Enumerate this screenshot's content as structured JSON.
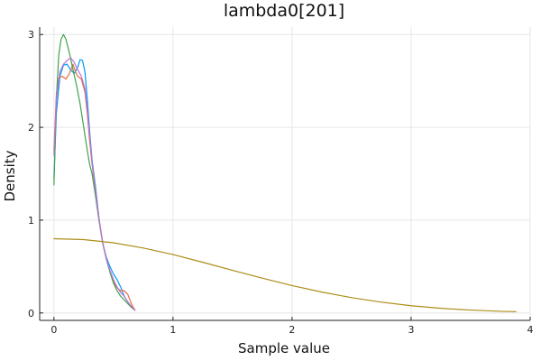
{
  "chart_data": {
    "type": "line",
    "title": "lambda0[201]",
    "xlabel": "Sample value",
    "ylabel": "Density",
    "xlim": [
      -0.12,
      4.0
    ],
    "ylim": [
      -0.08,
      3.08
    ],
    "x_ticks": [
      0,
      1,
      2,
      3,
      4
    ],
    "x_tick_labels": [
      "0",
      "1",
      "2",
      "3",
      "4"
    ],
    "y_ticks": [
      0,
      1,
      2,
      3
    ],
    "y_tick_labels": [
      "0",
      "1",
      "2",
      "3"
    ],
    "grid": true,
    "legend": "none",
    "series": [
      {
        "color": "#009af9",
        "points": [
          [
            0.0,
            1.45
          ],
          [
            0.02,
            2.15
          ],
          [
            0.05,
            2.55
          ],
          [
            0.08,
            2.67
          ],
          [
            0.11,
            2.68
          ],
          [
            0.14,
            2.62
          ],
          [
            0.17,
            2.58
          ],
          [
            0.2,
            2.65
          ],
          [
            0.22,
            2.73
          ],
          [
            0.24,
            2.72
          ],
          [
            0.26,
            2.6
          ],
          [
            0.28,
            2.3
          ],
          [
            0.3,
            1.95
          ],
          [
            0.32,
            1.65
          ],
          [
            0.35,
            1.35
          ],
          [
            0.38,
            1.0
          ],
          [
            0.41,
            0.75
          ],
          [
            0.44,
            0.6
          ],
          [
            0.47,
            0.5
          ],
          [
            0.5,
            0.42
          ],
          [
            0.53,
            0.36
          ],
          [
            0.56,
            0.28
          ],
          [
            0.59,
            0.18
          ],
          [
            0.62,
            0.12
          ],
          [
            0.65,
            0.07
          ],
          [
            0.68,
            0.03
          ]
        ]
      },
      {
        "color": "#e26f46",
        "points": [
          [
            0.0,
            1.75
          ],
          [
            0.02,
            2.35
          ],
          [
            0.04,
            2.53
          ],
          [
            0.07,
            2.55
          ],
          [
            0.1,
            2.52
          ],
          [
            0.13,
            2.58
          ],
          [
            0.16,
            2.68
          ],
          [
            0.18,
            2.6
          ],
          [
            0.2,
            2.55
          ],
          [
            0.23,
            2.52
          ],
          [
            0.26,
            2.38
          ],
          [
            0.28,
            2.15
          ],
          [
            0.3,
            1.85
          ],
          [
            0.32,
            1.6
          ],
          [
            0.35,
            1.3
          ],
          [
            0.38,
            1.0
          ],
          [
            0.41,
            0.75
          ],
          [
            0.44,
            0.58
          ],
          [
            0.47,
            0.45
          ],
          [
            0.5,
            0.33
          ],
          [
            0.53,
            0.27
          ],
          [
            0.56,
            0.24
          ],
          [
            0.59,
            0.24
          ],
          [
            0.62,
            0.2
          ],
          [
            0.65,
            0.1
          ],
          [
            0.68,
            0.03
          ]
        ]
      },
      {
        "color": "#3da44d",
        "points": [
          [
            0.0,
            1.38
          ],
          [
            0.02,
            2.3
          ],
          [
            0.04,
            2.78
          ],
          [
            0.06,
            2.95
          ],
          [
            0.08,
            3.0
          ],
          [
            0.1,
            2.95
          ],
          [
            0.13,
            2.8
          ],
          [
            0.16,
            2.62
          ],
          [
            0.19,
            2.45
          ],
          [
            0.22,
            2.25
          ],
          [
            0.25,
            2.0
          ],
          [
            0.28,
            1.75
          ],
          [
            0.3,
            1.6
          ],
          [
            0.32,
            1.5
          ],
          [
            0.35,
            1.25
          ],
          [
            0.38,
            0.98
          ],
          [
            0.41,
            0.75
          ],
          [
            0.44,
            0.58
          ],
          [
            0.47,
            0.44
          ],
          [
            0.5,
            0.32
          ],
          [
            0.53,
            0.24
          ],
          [
            0.56,
            0.18
          ],
          [
            0.59,
            0.14
          ],
          [
            0.62,
            0.1
          ],
          [
            0.65,
            0.06
          ],
          [
            0.68,
            0.03
          ]
        ]
      },
      {
        "color": "#c271d2",
        "points": [
          [
            0.0,
            1.7
          ],
          [
            0.02,
            2.3
          ],
          [
            0.05,
            2.6
          ],
          [
            0.08,
            2.68
          ],
          [
            0.11,
            2.72
          ],
          [
            0.14,
            2.75
          ],
          [
            0.17,
            2.7
          ],
          [
            0.2,
            2.62
          ],
          [
            0.23,
            2.55
          ],
          [
            0.26,
            2.42
          ],
          [
            0.28,
            2.2
          ],
          [
            0.3,
            1.9
          ],
          [
            0.32,
            1.62
          ],
          [
            0.35,
            1.32
          ],
          [
            0.38,
            1.0
          ],
          [
            0.41,
            0.75
          ],
          [
            0.44,
            0.58
          ],
          [
            0.47,
            0.46
          ],
          [
            0.5,
            0.36
          ],
          [
            0.53,
            0.28
          ],
          [
            0.56,
            0.22
          ],
          [
            0.59,
            0.18
          ],
          [
            0.62,
            0.12
          ],
          [
            0.65,
            0.07
          ],
          [
            0.68,
            0.03
          ]
        ]
      },
      {
        "color": "#ac8d18",
        "points": [
          [
            0.0,
            0.8
          ],
          [
            0.25,
            0.79
          ],
          [
            0.5,
            0.756
          ],
          [
            0.75,
            0.7
          ],
          [
            1.0,
            0.629
          ],
          [
            1.25,
            0.546
          ],
          [
            1.5,
            0.459
          ],
          [
            1.75,
            0.375
          ],
          [
            2.0,
            0.295
          ],
          [
            2.25,
            0.225
          ],
          [
            2.5,
            0.165
          ],
          [
            2.75,
            0.116
          ],
          [
            3.0,
            0.078
          ],
          [
            3.25,
            0.05
          ],
          [
            3.5,
            0.031
          ],
          [
            3.75,
            0.018
          ],
          [
            3.88,
            0.014
          ]
        ]
      }
    ]
  }
}
